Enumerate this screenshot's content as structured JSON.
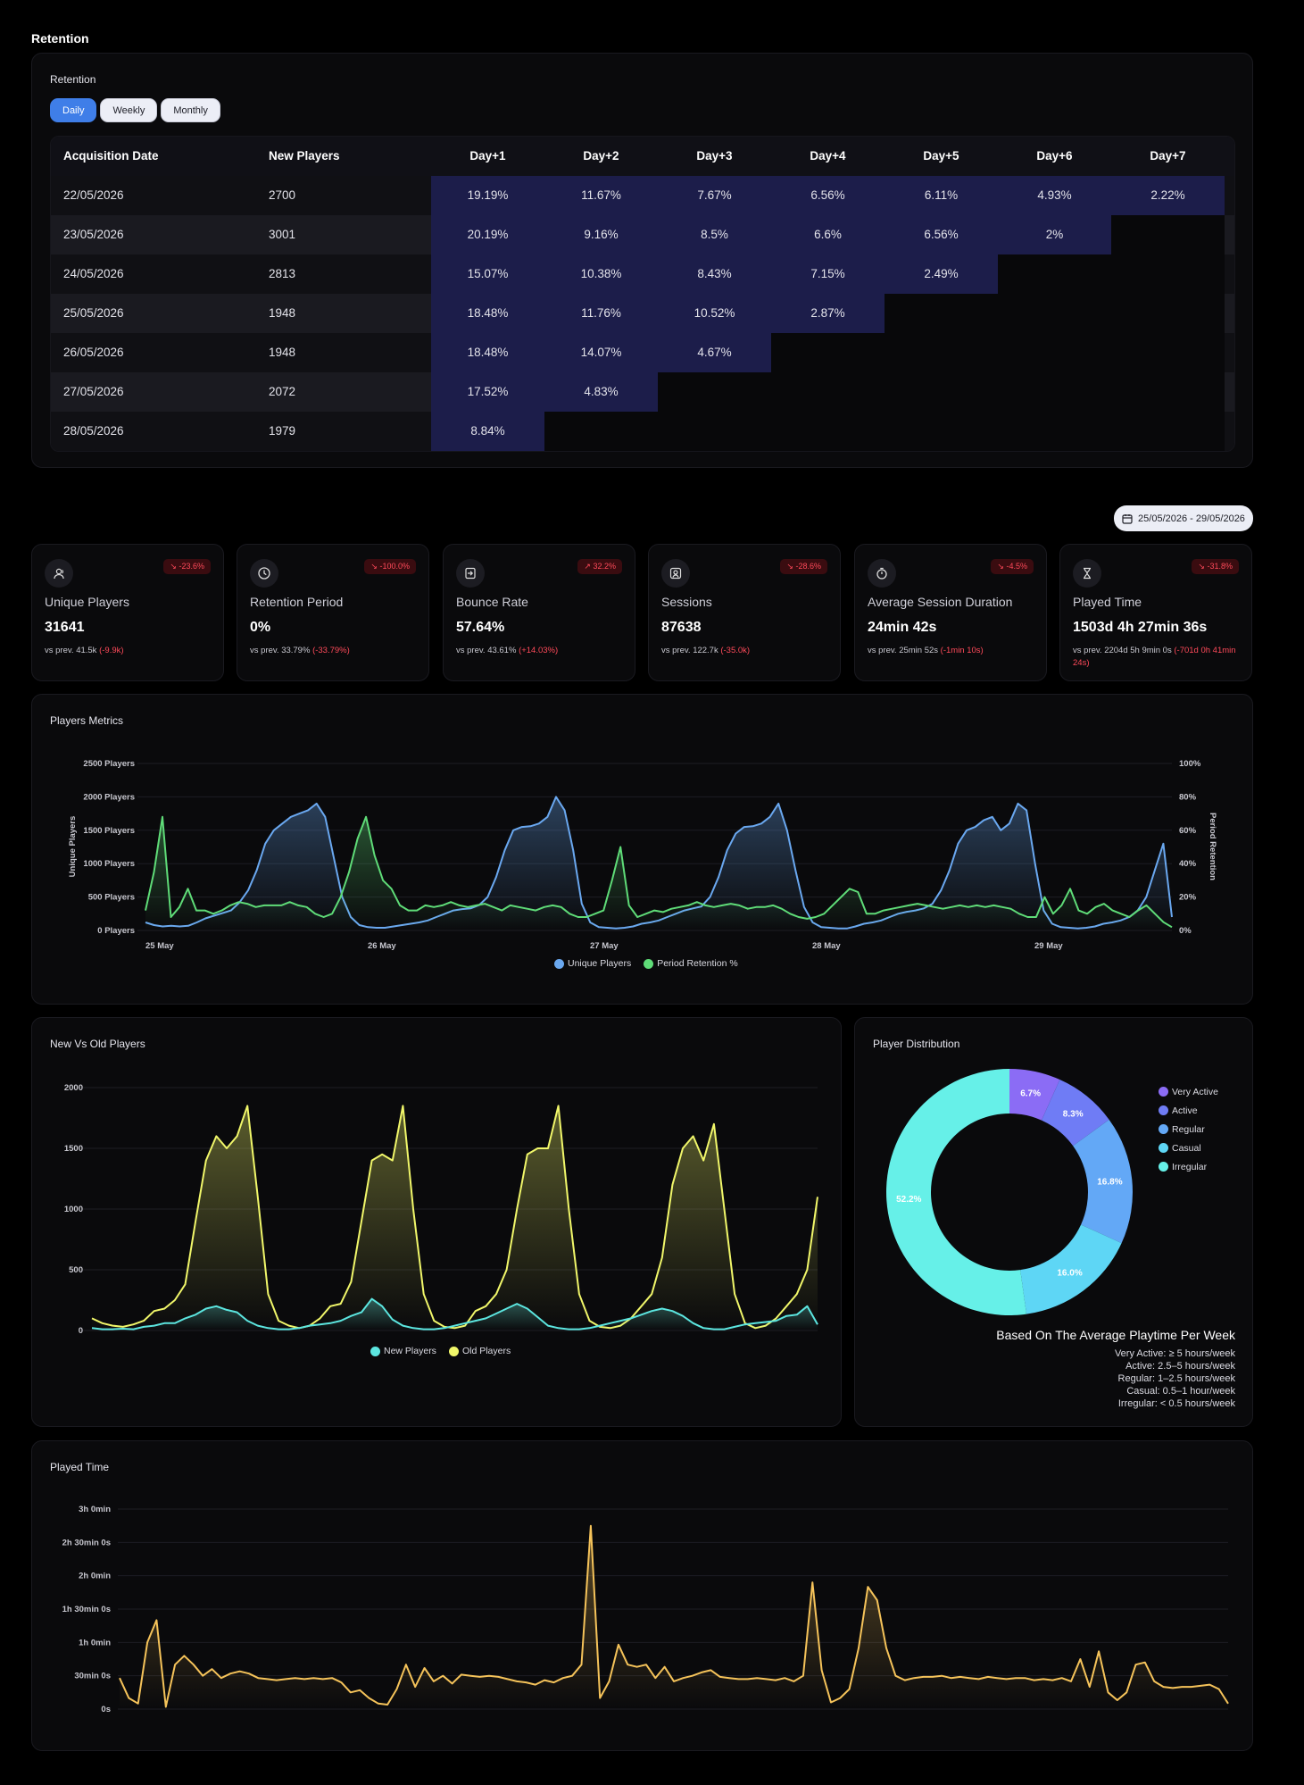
{
  "page_title": "Retention",
  "retention": {
    "title": "Retention",
    "tabs": [
      "Daily",
      "Weekly",
      "Monthly"
    ],
    "active_tab": "Daily",
    "headers": [
      "Acquisition Date",
      "New Players",
      "Day+1",
      "Day+2",
      "Day+3",
      "Day+4",
      "Day+5",
      "Day+6",
      "Day+7"
    ],
    "rows": [
      {
        "date": "22/05/2026",
        "new": "2700",
        "days": [
          "19.19%",
          "11.67%",
          "7.67%",
          "6.56%",
          "6.11%",
          "4.93%",
          "2.22%"
        ]
      },
      {
        "date": "23/05/2026",
        "new": "3001",
        "days": [
          "20.19%",
          "9.16%",
          "8.5%",
          "6.6%",
          "6.56%",
          "2%"
        ]
      },
      {
        "date": "24/05/2026",
        "new": "2813",
        "days": [
          "15.07%",
          "10.38%",
          "8.43%",
          "7.15%",
          "2.49%"
        ]
      },
      {
        "date": "25/05/2026",
        "new": "1948",
        "days": [
          "18.48%",
          "11.76%",
          "10.52%",
          "2.87%"
        ]
      },
      {
        "date": "26/05/2026",
        "new": "1948",
        "days": [
          "18.48%",
          "14.07%",
          "4.67%"
        ]
      },
      {
        "date": "27/05/2026",
        "new": "2072",
        "days": [
          "17.52%",
          "4.83%"
        ]
      },
      {
        "date": "28/05/2026",
        "new": "1979",
        "days": [
          "8.84%"
        ]
      }
    ],
    "heat_color": "#1c1d4a"
  },
  "date_range": "25/05/2026 - 29/05/2026",
  "kpis": [
    {
      "icon": "users-icon",
      "label": "Unique Players",
      "badge": "-23.6%",
      "value": "31641",
      "prev": "vs prev. 41.5k",
      "delta": "(-9.9k)"
    },
    {
      "icon": "clock-icon",
      "label": "Retention Period",
      "badge": "-100.0%",
      "value": "0%",
      "prev": "vs prev. 33.79%",
      "delta": "(-33.79%)"
    },
    {
      "icon": "sign-in-icon",
      "label": "Bounce Rate",
      "badge": "32.2%",
      "value": "57.64%",
      "prev": "vs prev. 43.61%",
      "delta": "(+14.03%)"
    },
    {
      "icon": "user-square-icon",
      "label": "Sessions",
      "badge": "-28.6%",
      "value": "87638",
      "prev": "vs prev. 122.7k",
      "delta": "(-35.0k)"
    },
    {
      "icon": "stopwatch-icon",
      "label": "Average Session Duration",
      "badge": "-4.5%",
      "value": "24min 42s",
      "prev": "vs prev. 25min 52s",
      "delta": "(-1min 10s)"
    },
    {
      "icon": "hourglass-icon",
      "label": "Played Time",
      "badge": "-31.8%",
      "value": "1503d 4h 27min 36s",
      "prev": "vs prev. 2204d 5h 9min 0s",
      "delta": "(-701d 0h 41min 24s)"
    }
  ],
  "players_metrics": {
    "title": "Players Metrics",
    "chart_data": {
      "type": "line",
      "ylabel": "Unique Players",
      "y2label": "Period Retention",
      "ylim": [
        0,
        2500
      ],
      "y2lim": [
        0,
        100
      ],
      "yticks": [
        "2500 Players",
        "2000 Players",
        "1500 Players",
        "1000 Players",
        "500 Players",
        "0 Players"
      ],
      "y2ticks": [
        "100%",
        "80%",
        "60%",
        "40%",
        "20%",
        "0%"
      ],
      "xticks": [
        "25 May",
        "26 May",
        "27 May",
        "28 May",
        "29 May"
      ],
      "series": [
        {
          "name": "Unique Players",
          "color": "#6aa8f0",
          "axis": "left",
          "values": [
            120,
            80,
            60,
            70,
            60,
            70,
            120,
            180,
            220,
            260,
            300,
            420,
            600,
            900,
            1300,
            1500,
            1600,
            1700,
            1750,
            1800,
            1900,
            1700,
            1100,
            500,
            200,
            80,
            50,
            40,
            40,
            60,
            80,
            100,
            120,
            150,
            200,
            250,
            300,
            320,
            330,
            380,
            500,
            800,
            1200,
            1500,
            1550,
            1560,
            1600,
            1700,
            2000,
            1800,
            1200,
            400,
            120,
            50,
            40,
            30,
            40,
            60,
            100,
            120,
            150,
            200,
            250,
            300,
            330,
            360,
            500,
            800,
            1200,
            1450,
            1550,
            1560,
            1600,
            1700,
            1900,
            1500,
            900,
            350,
            120,
            50,
            40,
            30,
            30,
            60,
            100,
            120,
            150,
            200,
            250,
            280,
            300,
            330,
            400,
            600,
            900,
            1300,
            1500,
            1550,
            1650,
            1700,
            1500,
            1600,
            1900,
            1800,
            1000,
            300,
            100,
            50,
            40,
            30,
            40,
            60,
            100,
            120,
            150,
            200,
            300,
            500,
            900,
            1300,
            200
          ]
        },
        {
          "name": "Period Retention %",
          "color": "#5fdc78",
          "axis": "right",
          "values": [
            12,
            35,
            68,
            8,
            14,
            25,
            12,
            12,
            10,
            12,
            15,
            17,
            16,
            14,
            15,
            15,
            15,
            17,
            15,
            14,
            10,
            8,
            10,
            20,
            35,
            55,
            68,
            45,
            30,
            25,
            15,
            12,
            12,
            15,
            14,
            15,
            17,
            15,
            14,
            15,
            16,
            14,
            12,
            15,
            14,
            13,
            12,
            14,
            15,
            14,
            10,
            8,
            8,
            10,
            12,
            30,
            50,
            15,
            8,
            10,
            12,
            11,
            13,
            14,
            15,
            17,
            15,
            14,
            15,
            16,
            15,
            13,
            14,
            14,
            15,
            13,
            10,
            8,
            7,
            8,
            10,
            15,
            20,
            25,
            23,
            10,
            10,
            12,
            13,
            14,
            15,
            16,
            15,
            14,
            13,
            14,
            15,
            14,
            15,
            14,
            15,
            14,
            13,
            10,
            8,
            8,
            20,
            10,
            15,
            25,
            12,
            10,
            14,
            16,
            12,
            10,
            8,
            12,
            15,
            10,
            5,
            2
          ]
        }
      ]
    },
    "legend": [
      "Unique Players",
      "Period Retention %"
    ]
  },
  "new_vs_old": {
    "title": "New Vs Old Players",
    "chart_data": {
      "type": "line",
      "ylim": [
        0,
        2000
      ],
      "yticks": [
        "2000",
        "1500",
        "1000",
        "500",
        "0"
      ],
      "series": [
        {
          "name": "New Players",
          "color": "#5ce6e0",
          "values": [
            20,
            10,
            10,
            15,
            10,
            30,
            40,
            60,
            60,
            100,
            130,
            180,
            200,
            170,
            150,
            80,
            40,
            20,
            10,
            10,
            20,
            40,
            50,
            60,
            80,
            120,
            150,
            260,
            200,
            90,
            40,
            20,
            10,
            10,
            20,
            40,
            60,
            80,
            100,
            140,
            180,
            220,
            180,
            110,
            40,
            20,
            10,
            10,
            20,
            40,
            60,
            80,
            100,
            130,
            160,
            180,
            160,
            120,
            60,
            20,
            10,
            10,
            30,
            50,
            60,
            70,
            80,
            120,
            130,
            200,
            50
          ]
        },
        {
          "name": "Old Players",
          "color": "#f1f76a",
          "values": [
            100,
            60,
            40,
            30,
            50,
            80,
            160,
            180,
            250,
            380,
            900,
            1400,
            1600,
            1500,
            1600,
            1850,
            1100,
            300,
            80,
            40,
            20,
            40,
            100,
            200,
            220,
            400,
            900,
            1400,
            1450,
            1400,
            1850,
            1000,
            300,
            80,
            30,
            20,
            40,
            160,
            200,
            300,
            500,
            1000,
            1450,
            1500,
            1500,
            1850,
            1000,
            300,
            80,
            30,
            20,
            40,
            100,
            200,
            300,
            600,
            1200,
            1500,
            1600,
            1400,
            1700,
            1000,
            300,
            60,
            20,
            40,
            100,
            200,
            300,
            500,
            1100
          ]
        }
      ]
    },
    "legend": [
      "New Players",
      "Old Players"
    ]
  },
  "player_distribution": {
    "title": "Player Distribution",
    "chart_data": {
      "type": "pie",
      "slices": [
        {
          "name": "Very Active",
          "value": 6.7,
          "label": "6.7%",
          "color": "#8b6cf5"
        },
        {
          "name": "Active",
          "value": 8.3,
          "label": "8.3%",
          "color": "#6f7cf5"
        },
        {
          "name": "Regular",
          "value": 16.8,
          "label": "16.8%",
          "color": "#63a8f6"
        },
        {
          "name": "Casual",
          "value": 16.0,
          "label": "16.0%",
          "color": "#5ed6f5"
        },
        {
          "name": "Irregular",
          "value": 52.2,
          "label": "52.2%",
          "color": "#66f0e8"
        }
      ]
    },
    "note_title": "Based On The Average Playtime Per Week",
    "notes": [
      "Very Active: ≥ 5 hours/week",
      "Active: 2.5–5 hours/week",
      "Regular: 1–2.5 hours/week",
      "Casual: 0.5–1 hour/week",
      "Irregular: < 0.5 hours/week"
    ]
  },
  "played_time": {
    "title": "Played Time",
    "chart_data": {
      "type": "line",
      "ylim": [
        0,
        180
      ],
      "yunit": "minutes",
      "yticks": [
        "3h 0min",
        "2h 30min 0s",
        "2h 0min",
        "1h 30min 0s",
        "1h 0min",
        "30min 0s",
        "0s"
      ],
      "series": [
        {
          "name": "Played Time",
          "color": "#f5c35a",
          "values": [
            28,
            10,
            5,
            60,
            80,
            2,
            40,
            48,
            40,
            30,
            36,
            28,
            32,
            34,
            32,
            28,
            27,
            26,
            27,
            28,
            27,
            28,
            27,
            28,
            24,
            15,
            17,
            10,
            5,
            4,
            18,
            40,
            20,
            37,
            25,
            30,
            23,
            31,
            30,
            29,
            30,
            29,
            27,
            25,
            24,
            22,
            26,
            24,
            28,
            30,
            40,
            165,
            10,
            25,
            58,
            40,
            38,
            40,
            28,
            38,
            25,
            28,
            30,
            33,
            35,
            29,
            28,
            27,
            27,
            28,
            27,
            26,
            28,
            25,
            30,
            114,
            35,
            6,
            10,
            18,
            55,
            110,
            98,
            55,
            30,
            26,
            28,
            29,
            29,
            30,
            28,
            29,
            28,
            27,
            29,
            28,
            27,
            28,
            28,
            26,
            27,
            26,
            28,
            25,
            45,
            20,
            52,
            15,
            8,
            15,
            40,
            42,
            25,
            20,
            19,
            20,
            20,
            21,
            22,
            18,
            5
          ]
        }
      ]
    }
  }
}
